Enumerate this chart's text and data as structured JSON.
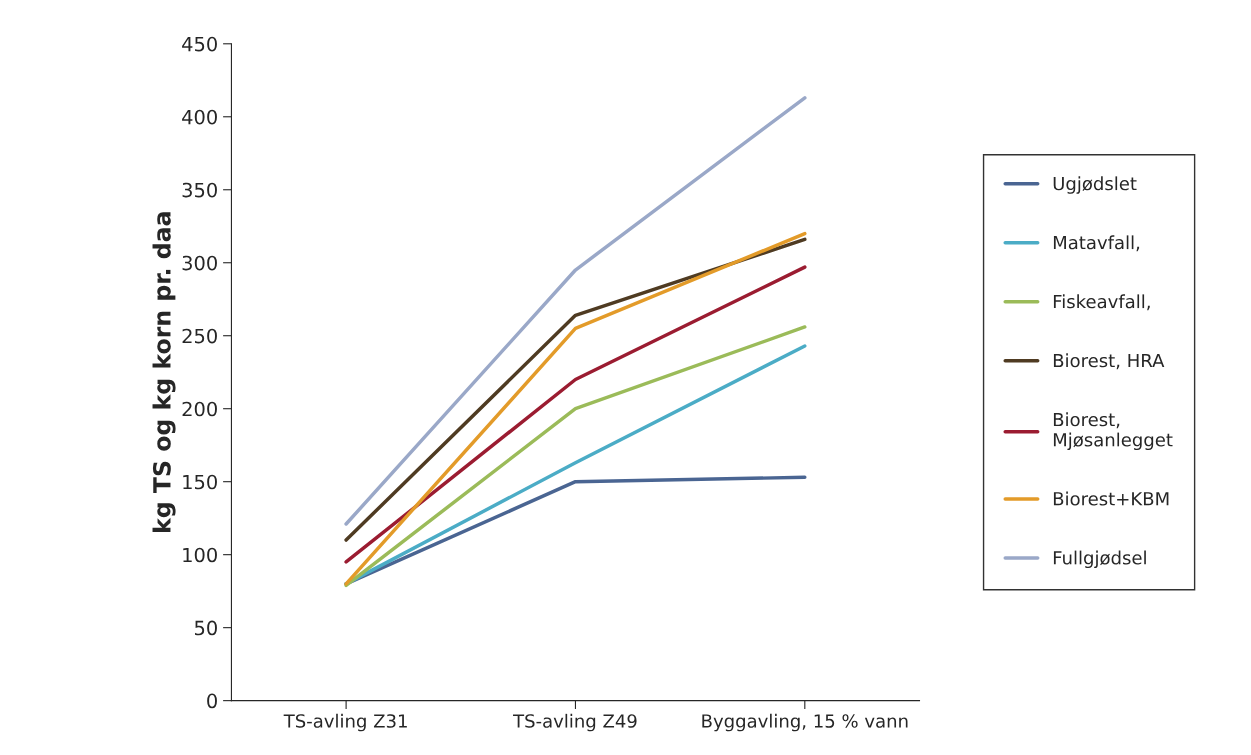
{
  "chart_data": {
    "type": "line",
    "ylabel": "kg TS og kg korn pr. daa",
    "categories": [
      "TS-avling Z31",
      "TS-avling Z49",
      "Byggavling, 15 % vann"
    ],
    "series": [
      {
        "name": "Ugjødslet",
        "color": "#4a6592",
        "values": [
          80,
          150,
          153
        ]
      },
      {
        "name": "Matavfall,",
        "color": "#4bacc6",
        "values": [
          80,
          163,
          243
        ]
      },
      {
        "name": "Fiskeavfall,",
        "color": "#9bbb59",
        "values": [
          79,
          200,
          256
        ]
      },
      {
        "name": "Biorest, HRA",
        "color": "#4f3b22",
        "values": [
          110,
          264,
          316
        ]
      },
      {
        "name": "Biorest,\nMjøsanlegget",
        "color": "#9b1c31",
        "values": [
          95,
          220,
          297
        ]
      },
      {
        "name": "Biorest+KBM",
        "color": "#e39b29",
        "values": [
          80,
          255,
          320
        ]
      },
      {
        "name": "Fullgjødsel",
        "color": "#9aa8c8",
        "values": [
          121,
          295,
          413
        ]
      }
    ],
    "ylim": [
      0,
      450
    ],
    "yticks": [
      0,
      50,
      100,
      150,
      200,
      250,
      300,
      350,
      400,
      450
    ],
    "legend": "right",
    "marker": "none",
    "line_style": "solid",
    "grid": false
  }
}
